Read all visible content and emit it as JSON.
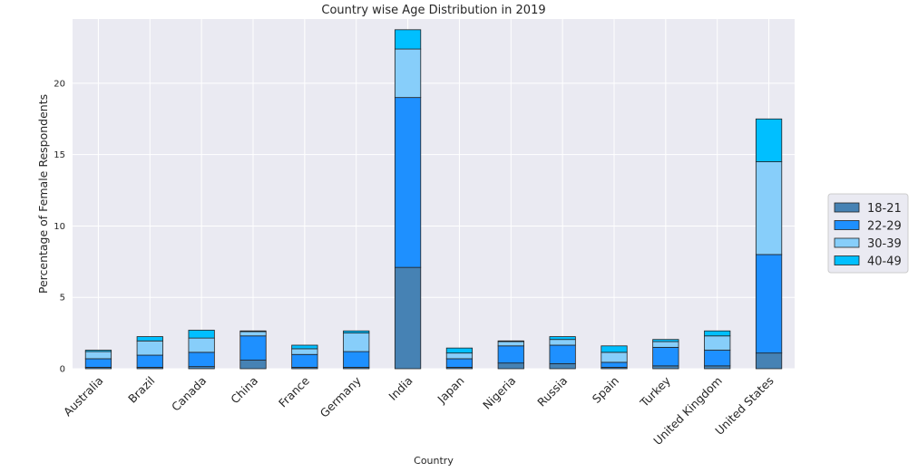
{
  "chart_data": {
    "type": "bar",
    "stacked": true,
    "title": "Country wise Age Distribution in 2019",
    "xlabel": "Country",
    "ylabel": "Percentage of Female Respondents",
    "ylim": [
      0,
      24.5
    ],
    "yticks": [
      0,
      5,
      10,
      15,
      20
    ],
    "grid": true,
    "legend_position": "right",
    "categories": [
      "Australia",
      "Brazil",
      "Canada",
      "China",
      "France",
      "Germany",
      "India",
      "Japan",
      "Nigeria",
      "Russia",
      "Spain",
      "Turkey",
      "United Kingdom",
      "United States"
    ],
    "series": [
      {
        "name": "18-21",
        "color": "#4682B4",
        "values": [
          0.1,
          0.1,
          0.15,
          0.6,
          0.1,
          0.1,
          7.1,
          0.1,
          0.4,
          0.35,
          0.1,
          0.2,
          0.2,
          1.1
        ]
      },
      {
        "name": "22-29",
        "color": "#1E90FF",
        "values": [
          0.6,
          0.85,
          1.0,
          1.7,
          0.9,
          1.1,
          11.9,
          0.6,
          1.2,
          1.3,
          0.35,
          1.3,
          1.1,
          6.9
        ]
      },
      {
        "name": "30-39",
        "color": "#87CEFA",
        "values": [
          0.5,
          1.0,
          1.0,
          0.3,
          0.4,
          1.3,
          3.4,
          0.4,
          0.3,
          0.4,
          0.7,
          0.4,
          1.0,
          6.5
        ]
      },
      {
        "name": "40-49",
        "color": "#00BFFF",
        "values": [
          0.1,
          0.3,
          0.55,
          0.05,
          0.25,
          0.15,
          1.35,
          0.35,
          0.05,
          0.2,
          0.45,
          0.15,
          0.35,
          3.0
        ]
      }
    ]
  }
}
